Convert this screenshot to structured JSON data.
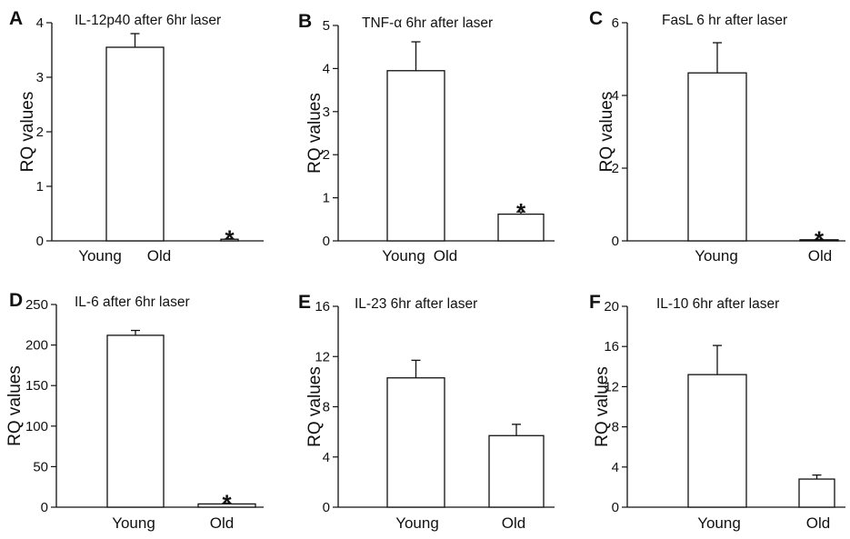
{
  "figure": {
    "panels": [
      {
        "letter": "A",
        "title": "IL-12p40 after 6hr laser",
        "ylabel": "RQ values"
      },
      {
        "letter": "B",
        "title": "TNF-α 6hr after laser",
        "ylabel": "RQ values"
      },
      {
        "letter": "C",
        "title": "FasL 6 hr after laser",
        "ylabel": "RQ values"
      },
      {
        "letter": "D",
        "title": "IL-6 after 6hr laser",
        "ylabel": "RQ values"
      },
      {
        "letter": "E",
        "title": "IL-23 6hr after laser",
        "ylabel": "RQ values"
      },
      {
        "letter": "F",
        "title": "IL-10 6hr after laser",
        "ylabel": "RQ values"
      }
    ]
  },
  "chart_data": [
    {
      "type": "bar",
      "panel": "A",
      "title": "IL-12p40 after 6hr laser",
      "xlabel": "",
      "ylabel": "RQ values",
      "categories": [
        "Young",
        "Old"
      ],
      "values": [
        3.55,
        0.03
      ],
      "errors": [
        0.25,
        0.01
      ],
      "significance": [
        "",
        "*"
      ],
      "ylim": [
        0,
        4
      ],
      "yticks": [
        0,
        1,
        2,
        3,
        4
      ],
      "grid": false,
      "legend": "none"
    },
    {
      "type": "bar",
      "panel": "B",
      "title": "TNF-α 6hr after laser",
      "xlabel": "",
      "ylabel": "RQ values",
      "categories": [
        "Young",
        "Old"
      ],
      "values": [
        3.95,
        0.62
      ],
      "errors": [
        0.67,
        0.05
      ],
      "significance": [
        "",
        "*"
      ],
      "ylim": [
        0,
        5
      ],
      "yticks": [
        0,
        1,
        2,
        3,
        4,
        5
      ],
      "grid": false,
      "legend": "none"
    },
    {
      "type": "bar",
      "panel": "C",
      "title": "FasL 6 hr after laser",
      "xlabel": "",
      "ylabel": "RQ values",
      "categories": [
        "Young",
        "Old"
      ],
      "values": [
        4.62,
        0.03
      ],
      "errors": [
        0.83,
        0.01
      ],
      "significance": [
        "",
        "*"
      ],
      "ylim": [
        0,
        6
      ],
      "yticks": [
        0,
        2,
        4,
        6
      ],
      "grid": false,
      "legend": "none"
    },
    {
      "type": "bar",
      "panel": "D",
      "title": "IL-6 after 6hr laser",
      "xlabel": "",
      "ylabel": "RQ values",
      "categories": [
        "Young",
        "Old"
      ],
      "values": [
        212,
        4
      ],
      "errors": [
        6,
        1
      ],
      "significance": [
        "",
        "*"
      ],
      "ylim": [
        0,
        250
      ],
      "yticks": [
        0,
        50,
        100,
        150,
        200,
        250
      ],
      "grid": false,
      "legend": "none"
    },
    {
      "type": "bar",
      "panel": "E",
      "title": "IL-23 6hr after laser",
      "xlabel": "",
      "ylabel": "RQ values",
      "categories": [
        "Young",
        "Old"
      ],
      "values": [
        10.3,
        5.7
      ],
      "errors": [
        1.4,
        0.9
      ],
      "significance": [
        "",
        ""
      ],
      "ylim": [
        0,
        16
      ],
      "yticks": [
        0,
        4,
        8,
        12,
        16
      ],
      "grid": false,
      "legend": "none"
    },
    {
      "type": "bar",
      "panel": "F",
      "title": "IL-10 6hr after laser",
      "xlabel": "",
      "ylabel": "RQ values",
      "categories": [
        "Young",
        "Old"
      ],
      "values": [
        13.2,
        2.8
      ],
      "errors": [
        2.9,
        0.4
      ],
      "significance": [
        "",
        ""
      ],
      "ylim": [
        0,
        20
      ],
      "yticks": [
        0,
        4,
        8,
        12,
        16,
        20
      ],
      "grid": false,
      "legend": "none"
    }
  ]
}
